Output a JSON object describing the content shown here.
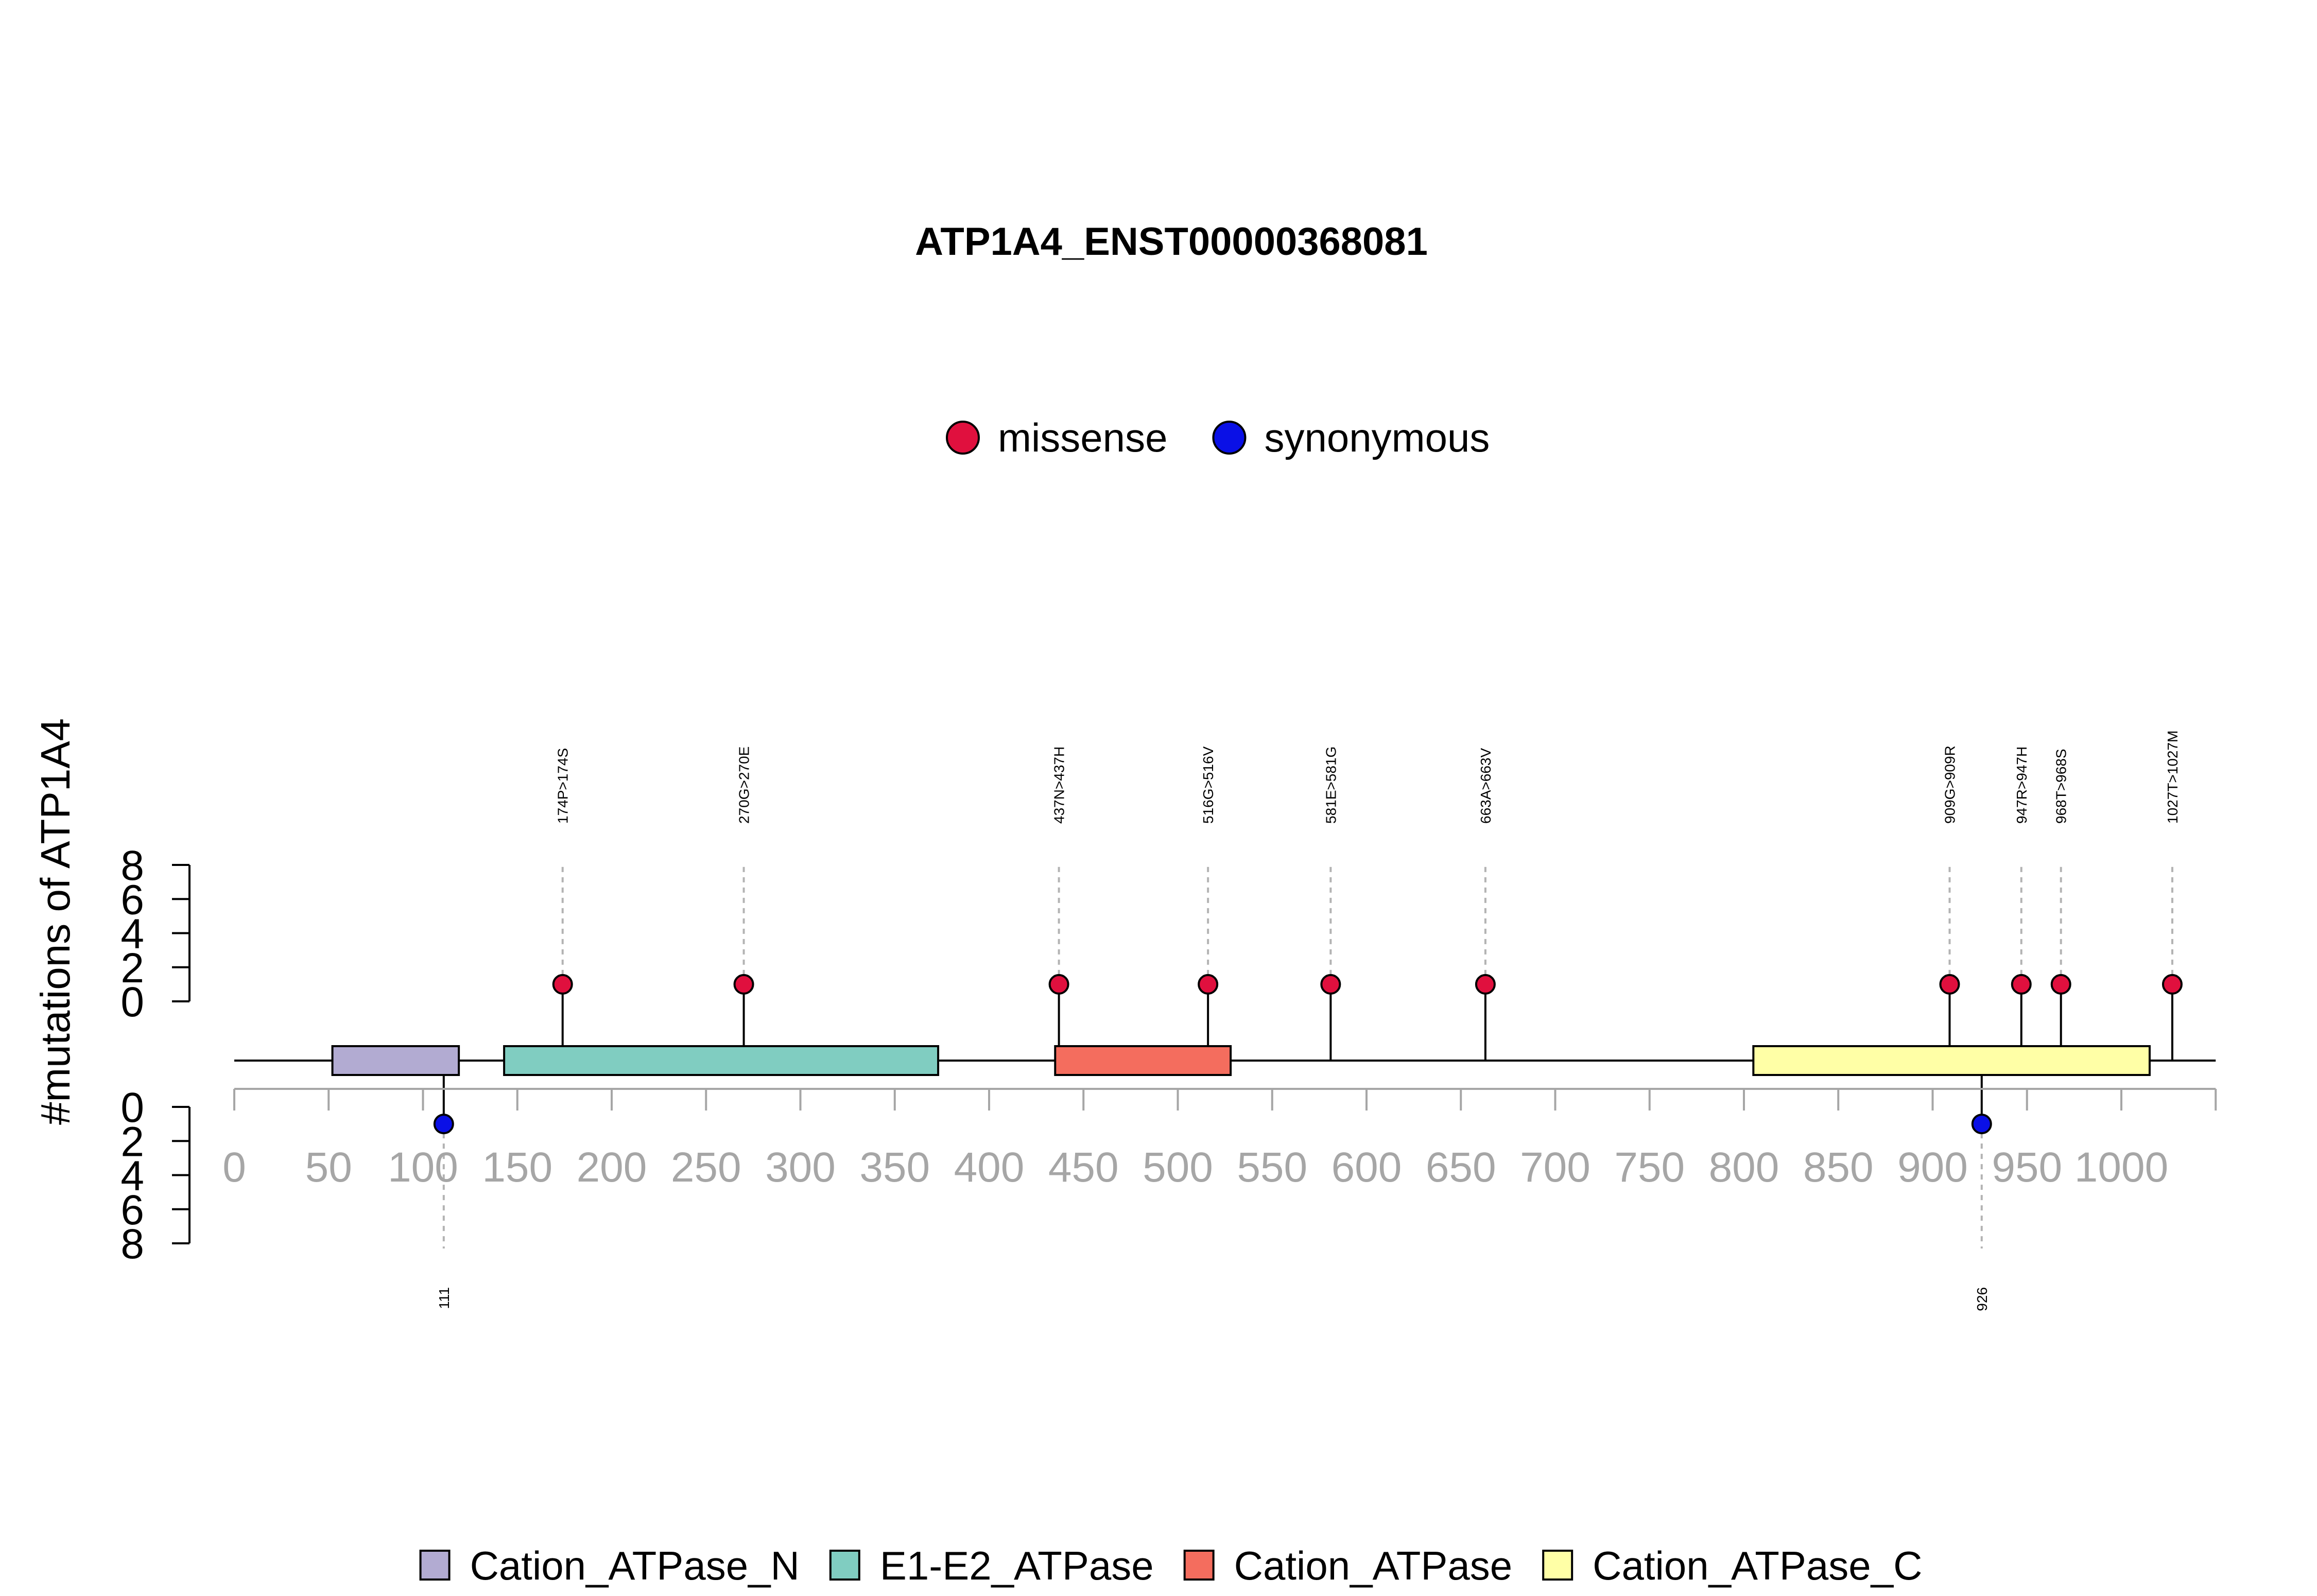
{
  "chart_data": {
    "type": "lollipop",
    "title": "ATP1A4_ENST00000368081",
    "ylabel": "#mutations of ATP1A4",
    "xlim": [
      0,
      1050
    ],
    "x_ticks": [
      0,
      50,
      100,
      150,
      200,
      250,
      300,
      350,
      400,
      450,
      500,
      550,
      600,
      650,
      700,
      750,
      800,
      850,
      900,
      950,
      1000
    ],
    "y_ticks_top": [
      0,
      2,
      4,
      6,
      8
    ],
    "y_ticks_bottom": [
      0,
      2,
      4,
      6,
      8
    ],
    "ylim": [
      0,
      8
    ],
    "mutation_legend": [
      {
        "name": "missense",
        "color": "#e0103e"
      },
      {
        "name": "synonymous",
        "color": "#0a10e6"
      }
    ],
    "mutations": [
      {
        "label": "174P>174S",
        "position": 174,
        "count": 1,
        "type": "missense",
        "side": "top"
      },
      {
        "label": "270G>270E",
        "position": 270,
        "count": 1,
        "type": "missense",
        "side": "top"
      },
      {
        "label": "437N>437H",
        "position": 437,
        "count": 1,
        "type": "missense",
        "side": "top"
      },
      {
        "label": "516G>516V",
        "position": 516,
        "count": 1,
        "type": "missense",
        "side": "top"
      },
      {
        "label": "581E>581G",
        "position": 581,
        "count": 1,
        "type": "missense",
        "side": "top"
      },
      {
        "label": "663A>663V",
        "position": 663,
        "count": 1,
        "type": "missense",
        "side": "top"
      },
      {
        "label": "909G>909R",
        "position": 909,
        "count": 1,
        "type": "missense",
        "side": "top"
      },
      {
        "label": "947R>947H",
        "position": 947,
        "count": 1,
        "type": "missense",
        "side": "top"
      },
      {
        "label": "968T>968S",
        "position": 968,
        "count": 1,
        "type": "missense",
        "side": "top"
      },
      {
        "label": "1027T>1027M",
        "position": 1027,
        "count": 1,
        "type": "missense",
        "side": "top"
      },
      {
        "label": "111",
        "position": 111,
        "count": 1,
        "type": "synonymous",
        "side": "bottom"
      },
      {
        "label": "926",
        "position": 926,
        "count": 1,
        "type": "synonymous",
        "side": "bottom"
      }
    ],
    "domains": [
      {
        "name": "Cation_ATPase_N",
        "start": 52,
        "end": 119,
        "color": "#b2abd2"
      },
      {
        "name": "E1-E2_ATPase",
        "start": 143,
        "end": 373,
        "color": "#80cdc1"
      },
      {
        "name": "Cation_ATPase",
        "start": 435,
        "end": 528,
        "color": "#f46d5e"
      },
      {
        "name": "Cation_ATPase_C",
        "start": 805,
        "end": 1015,
        "color": "#ffffa6"
      }
    ]
  }
}
